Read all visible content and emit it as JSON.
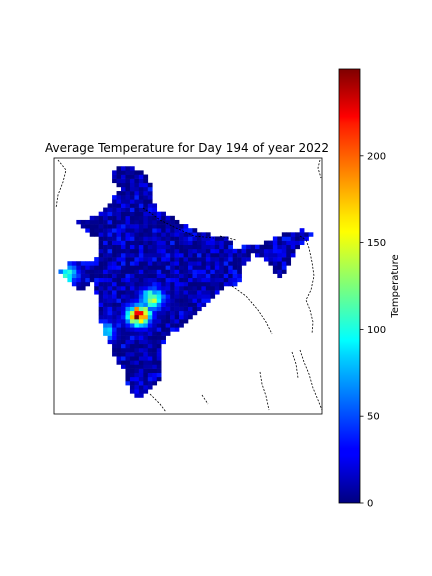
{
  "chart_data": {
    "type": "heatmap",
    "title": "Average Temperature for Day 194 of year 2022",
    "colorbar": {
      "label": "Temperature",
      "colormap": "jet",
      "range": [
        0,
        250
      ],
      "ticks": [
        0,
        50,
        100,
        150,
        200
      ],
      "tick_labels": [
        "0",
        "50",
        "100",
        "150",
        "200"
      ]
    },
    "map": {
      "region": "India",
      "lon_range": [
        68,
        98
      ],
      "lat_range": [
        6,
        37
      ],
      "grid_resolution_deg": 0.5,
      "typical_value_range": [
        0,
        40
      ],
      "hotspots": [
        {
          "lon": 77.5,
          "lat": 18.0,
          "value": 220
        },
        {
          "lon": 79.0,
          "lat": 20.0,
          "value": 130
        },
        {
          "lon": 69.5,
          "lat": 23.0,
          "value": 110
        },
        {
          "lon": 73.5,
          "lat": 16.0,
          "value": 100
        }
      ]
    }
  }
}
